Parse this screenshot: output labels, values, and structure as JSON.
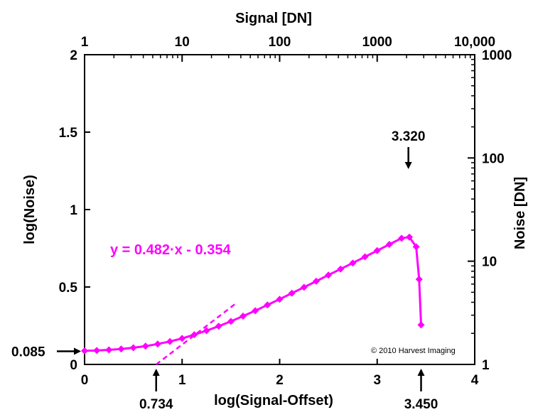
{
  "chart_data": {
    "type": "line",
    "x_axis": {
      "label": "log(Signal-Offset)",
      "range": [
        0,
        4
      ],
      "ticks": [
        "0",
        "1",
        "2",
        "3",
        "4"
      ]
    },
    "y_axis": {
      "label": "log(Noise)",
      "range": [
        0,
        2
      ],
      "ticks": [
        "0",
        "0.5",
        "1",
        "1.5",
        "2"
      ]
    },
    "top_axis": {
      "label": "Signal [DN]",
      "scale": "log",
      "ticks": [
        {
          "value": 0,
          "label": "1"
        },
        {
          "value": 1,
          "label": "10"
        },
        {
          "value": 2,
          "label": "100"
        },
        {
          "value": 3,
          "label": "1000"
        },
        {
          "value": 4,
          "label": "10,000"
        }
      ]
    },
    "right_axis": {
      "label": "Noise [DN]",
      "scale": "log",
      "ticks": [
        {
          "value": 0,
          "label": "1"
        },
        {
          "value": 1,
          "label": "10"
        },
        {
          "value": 2,
          "label": "100"
        },
        {
          "value": 3,
          "label": "1000"
        }
      ]
    },
    "series": [
      {
        "color": "#ff00ff",
        "marker": "diamond",
        "points": [
          [
            0.0,
            0.088
          ],
          [
            0.125,
            0.09
          ],
          [
            0.25,
            0.094
          ],
          [
            0.375,
            0.1
          ],
          [
            0.5,
            0.108
          ],
          [
            0.625,
            0.118
          ],
          [
            0.75,
            0.132
          ],
          [
            0.875,
            0.148
          ],
          [
            1.0,
            0.168
          ],
          [
            1.125,
            0.192
          ],
          [
            1.25,
            0.218
          ],
          [
            1.375,
            0.247
          ],
          [
            1.5,
            0.278
          ],
          [
            1.625,
            0.312
          ],
          [
            1.75,
            0.347
          ],
          [
            1.875,
            0.384
          ],
          [
            2.0,
            0.421
          ],
          [
            2.125,
            0.46
          ],
          [
            2.25,
            0.498
          ],
          [
            2.375,
            0.537
          ],
          [
            2.5,
            0.577
          ],
          [
            2.625,
            0.616
          ],
          [
            2.75,
            0.655
          ],
          [
            2.875,
            0.695
          ],
          [
            3.0,
            0.735
          ],
          [
            3.125,
            0.775
          ],
          [
            3.25,
            0.815
          ],
          [
            3.33,
            0.822
          ],
          [
            3.4,
            0.76
          ],
          [
            3.43,
            0.55
          ],
          [
            3.45,
            0.255
          ]
        ]
      }
    ],
    "fit_line": {
      "equation": "y = 0.482·x - 0.354",
      "slope": 0.482,
      "intercept": -0.354,
      "x_range": [
        0.734,
        1.55
      ],
      "color": "#ff00ff",
      "style": "dashed"
    },
    "annotations": [
      {
        "label": "0.085",
        "axis": "y",
        "value": 0.085,
        "arrow": "right"
      },
      {
        "label": "0.734",
        "axis": "x",
        "value": 0.734,
        "arrow": "up"
      },
      {
        "label": "3.450",
        "axis": "x",
        "value": 3.45,
        "arrow": "up"
      },
      {
        "label": "3.320",
        "at_x": 3.32,
        "arrow": "down"
      }
    ],
    "copyright": "© 2010 Harvest Imaging",
    "grid": false,
    "legend": "none"
  }
}
